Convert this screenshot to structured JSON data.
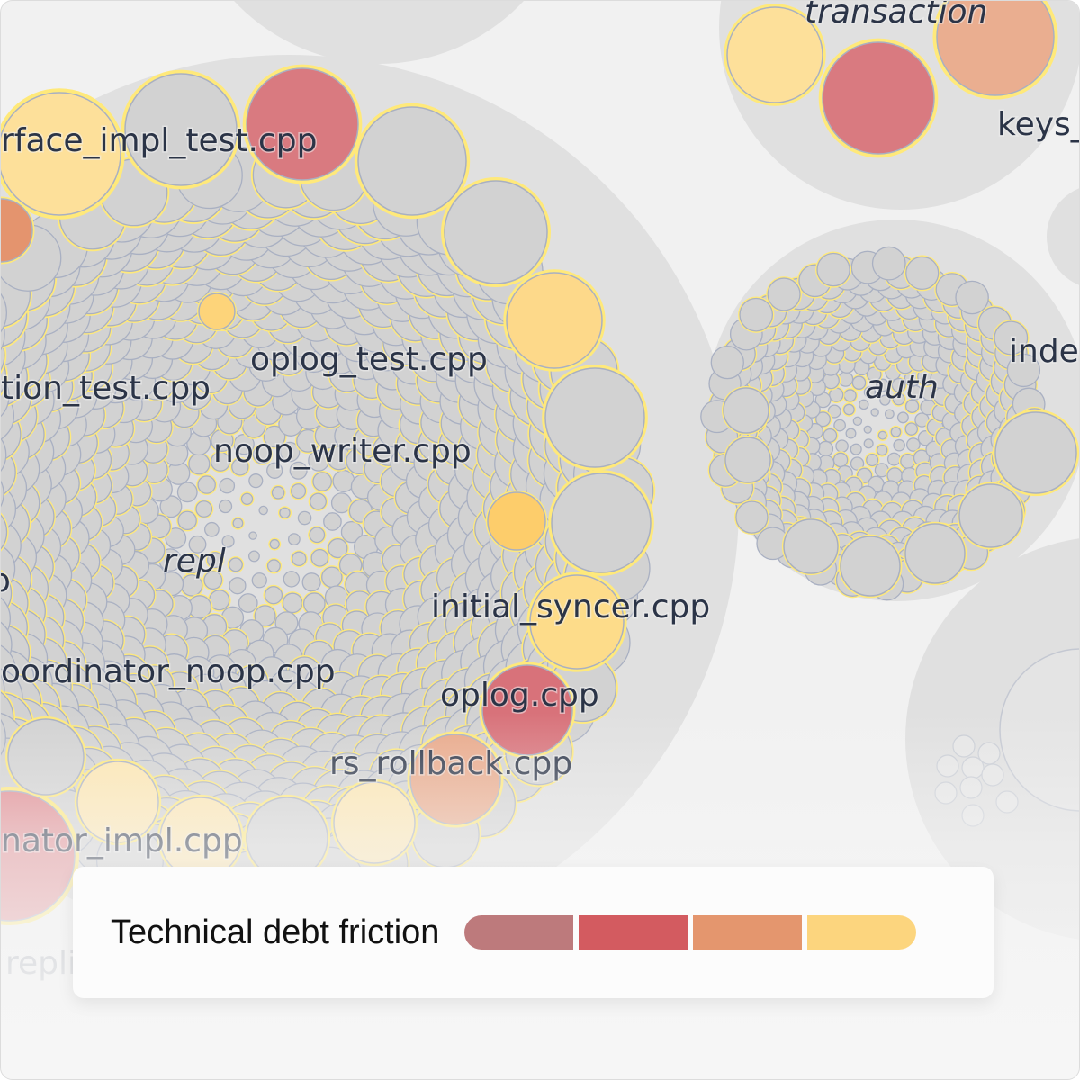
{
  "chart_data": {
    "type": "circle-packing",
    "groups": [
      {
        "name": "repl",
        "files": [
          "rface_impl_test.cpp",
          "oplog_test.cpp",
          "tion_test.cpp",
          "noop_writer.cpp",
          "initial_syncer.cpp",
          "oordinator_noop.cpp",
          "oplog.cpp",
          "rs_rollback.cpp",
          "nator_impl.cpp",
          "p"
        ]
      },
      {
        "name": "transaction",
        "files": [
          "keys_"
        ]
      },
      {
        "name": "auth",
        "files": [
          "inde"
        ]
      },
      {
        "name": "repli",
        "files": []
      }
    ],
    "legend": {
      "title": "Technical debt friction",
      "colors": [
        "#bd7a7c",
        "#d35b60",
        "#e4966e",
        "#fcd57e"
      ]
    },
    "colors": {
      "group_fill": "#e0e0e0",
      "file_fill": "#d2d2d2",
      "file_stroke": "#a9b0c2",
      "highlight_ring": "#ffe97a"
    }
  }
}
